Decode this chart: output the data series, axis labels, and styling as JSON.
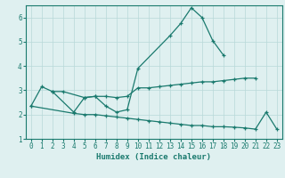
{
  "x_values": [
    0,
    1,
    2,
    3,
    4,
    5,
    6,
    7,
    8,
    9,
    10,
    11,
    12,
    13,
    14,
    15,
    16,
    17,
    18,
    19,
    20,
    21,
    22,
    23
  ],
  "line1_y": [
    2.35,
    3.15,
    2.95,
    null,
    2.1,
    2.7,
    2.75,
    2.35,
    2.1,
    2.2,
    3.9,
    null,
    null,
    5.25,
    5.75,
    6.4,
    6.0,
    5.05,
    4.45,
    null,
    null,
    null,
    null,
    null
  ],
  "line2_y": [
    null,
    null,
    2.95,
    2.95,
    null,
    2.7,
    2.75,
    2.75,
    2.7,
    2.75,
    3.1,
    3.1,
    3.15,
    3.2,
    3.25,
    3.3,
    3.35,
    3.35,
    3.4,
    3.45,
    3.5,
    3.5,
    null,
    null
  ],
  "line3_y": [
    2.35,
    null,
    null,
    null,
    2.05,
    2.0,
    2.0,
    1.95,
    1.9,
    1.85,
    1.8,
    1.75,
    1.7,
    1.65,
    1.6,
    1.55,
    1.55,
    1.5,
    1.5,
    1.48,
    1.45,
    1.4,
    2.1,
    1.4
  ],
  "line_color": "#1a7a6e",
  "bg_color": "#dff0f0",
  "grid_color": "#b8d8d8",
  "xlabel": "Humidex (Indice chaleur)",
  "ylim": [
    1.0,
    6.5
  ],
  "xlim": [
    -0.5,
    23.5
  ],
  "yticks": [
    1,
    2,
    3,
    4,
    5,
    6
  ],
  "xticks": [
    0,
    1,
    2,
    3,
    4,
    5,
    6,
    7,
    8,
    9,
    10,
    11,
    12,
    13,
    14,
    15,
    16,
    17,
    18,
    19,
    20,
    21,
    22,
    23
  ],
  "xlabel_fontsize": 6.5,
  "tick_fontsize": 5.5
}
